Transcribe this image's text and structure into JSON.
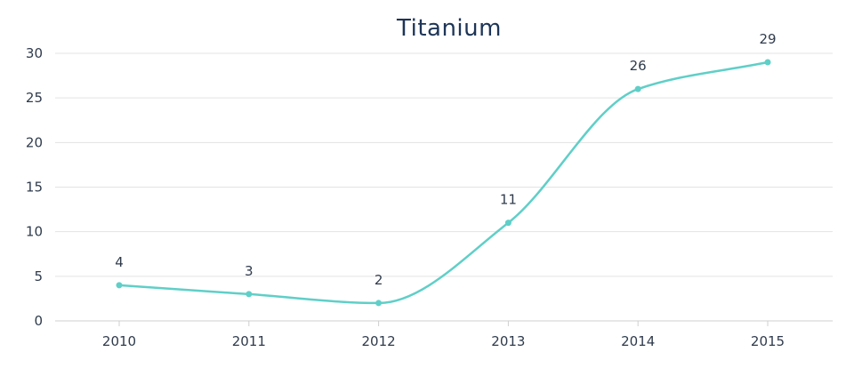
{
  "chart_data": {
    "type": "line",
    "title": "Titanium",
    "xlabel": "",
    "ylabel": "",
    "categories": [
      "2010",
      "2011",
      "2012",
      "2013",
      "2014",
      "2015"
    ],
    "series": [
      {
        "values": [
          4,
          3,
          2,
          11,
          26,
          29
        ]
      }
    ],
    "ylim": [
      0,
      30
    ],
    "yticks": [
      "0",
      "5",
      "10",
      "15",
      "20",
      "25",
      "30"
    ],
    "grid": true,
    "line_style": "smooth",
    "show_data_labels": true,
    "legend": "none",
    "colors": {
      "series": "#5fcfc8",
      "title": "#1d3557",
      "grid": "#e3e3e3"
    }
  }
}
